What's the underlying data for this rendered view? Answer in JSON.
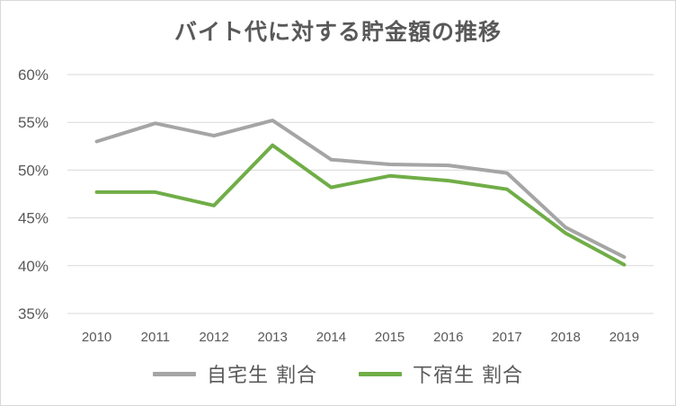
{
  "chart_data": {
    "type": "line",
    "title": "バイト代に対する貯金額の推移",
    "xlabel": "",
    "ylabel": "",
    "x": [
      "2010",
      "2011",
      "2012",
      "2013",
      "2014",
      "2015",
      "2016",
      "2017",
      "2018",
      "2019"
    ],
    "ylim": [
      0.35,
      0.6
    ],
    "yticks": [
      0.35,
      0.4,
      0.45,
      0.5,
      0.55,
      0.6
    ],
    "ytick_labels": [
      "35%",
      "40%",
      "45%",
      "50%",
      "55%",
      "60%"
    ],
    "grid": true,
    "legend": "bottom",
    "series": [
      {
        "name": "自宅生 割合",
        "color": "#a5a5a5",
        "values": [
          0.53,
          0.549,
          0.536,
          0.552,
          0.511,
          0.506,
          0.505,
          0.497,
          0.44,
          0.409
        ]
      },
      {
        "name": "下宿生 割合",
        "color": "#70ad47",
        "values": [
          0.477,
          0.477,
          0.463,
          0.526,
          0.482,
          0.494,
          0.489,
          0.48,
          0.434,
          0.401
        ]
      }
    ]
  }
}
